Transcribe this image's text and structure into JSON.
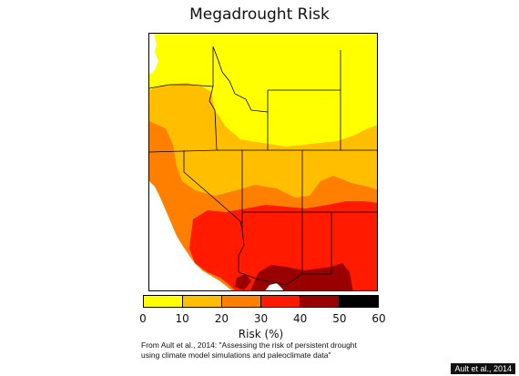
{
  "map": {
    "title": "Megadrought Risk"
  },
  "legend": {
    "title": "Risk (%)",
    "ticks": [
      "0",
      "10",
      "20",
      "30",
      "40",
      "50",
      "60"
    ],
    "bins": [
      {
        "range": [
          0,
          10
        ],
        "color": "#ffff00"
      },
      {
        "range": [
          10,
          20
        ],
        "color": "#ffbf00"
      },
      {
        "range": [
          20,
          30
        ],
        "color": "#ff8000"
      },
      {
        "range": [
          30,
          40
        ],
        "color": "#ff1a00"
      },
      {
        "range": [
          40,
          50
        ],
        "color": "#990000"
      },
      {
        "range": [
          50,
          60
        ],
        "color": "#000000"
      }
    ]
  },
  "citation": {
    "line1": "From Ault et al., 2014: \"Assessing the risk of persistent drought",
    "line2": "using climate model simulations and paleoclimate data\""
  },
  "credit": {
    "text": "Ault et al., 2014"
  }
}
